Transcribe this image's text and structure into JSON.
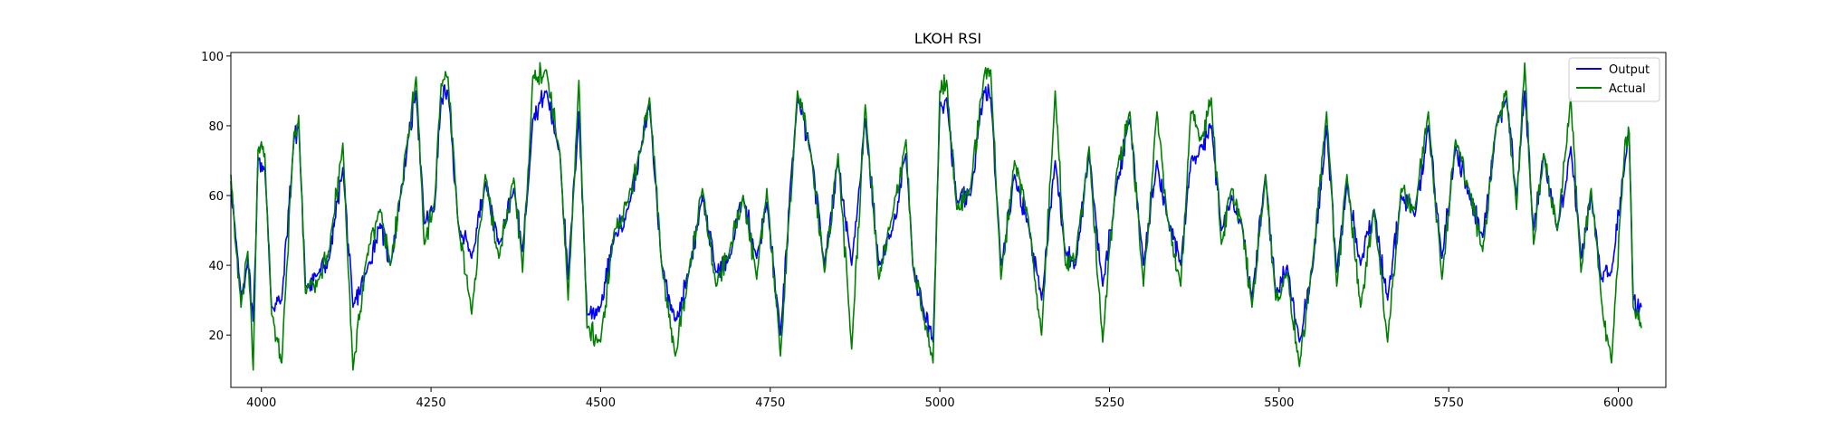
{
  "chart_data": {
    "type": "line",
    "title": "LKOH RSI",
    "xlabel": "",
    "ylabel": "",
    "xlim": [
      3955,
      6070
    ],
    "ylim": [
      5,
      101
    ],
    "x_ticks": [
      4000,
      4250,
      4500,
      4750,
      5000,
      5250,
      5500,
      5750,
      6000
    ],
    "y_ticks": [
      20,
      40,
      60,
      80,
      100
    ],
    "grid": false,
    "legend_position": "top-right",
    "x_range_of_data": [
      3955,
      6034
    ],
    "series": [
      {
        "name": "Output",
        "color": "#0000ff",
        "key_points": [
          [
            3955,
            64
          ],
          [
            3962,
            48
          ],
          [
            3970,
            30
          ],
          [
            3980,
            42
          ],
          [
            3988,
            24
          ],
          [
            3995,
            70
          ],
          [
            4005,
            68
          ],
          [
            4015,
            28
          ],
          [
            4030,
            30
          ],
          [
            4048,
            76
          ],
          [
            4055,
            80
          ],
          [
            4065,
            34
          ],
          [
            4085,
            38
          ],
          [
            4100,
            42
          ],
          [
            4120,
            68
          ],
          [
            4135,
            28
          ],
          [
            4155,
            38
          ],
          [
            4175,
            52
          ],
          [
            4190,
            40
          ],
          [
            4205,
            60
          ],
          [
            4215,
            74
          ],
          [
            4228,
            90
          ],
          [
            4240,
            52
          ],
          [
            4255,
            56
          ],
          [
            4265,
            88
          ],
          [
            4275,
            90
          ],
          [
            4290,
            52
          ],
          [
            4310,
            42
          ],
          [
            4330,
            64
          ],
          [
            4350,
            46
          ],
          [
            4372,
            62
          ],
          [
            4385,
            44
          ],
          [
            4400,
            82
          ],
          [
            4420,
            90
          ],
          [
            4440,
            72
          ],
          [
            4452,
            36
          ],
          [
            4468,
            84
          ],
          [
            4480,
            26
          ],
          [
            4500,
            28
          ],
          [
            4520,
            48
          ],
          [
            4540,
            56
          ],
          [
            4560,
            74
          ],
          [
            4572,
            86
          ],
          [
            4590,
            40
          ],
          [
            4610,
            24
          ],
          [
            4630,
            38
          ],
          [
            4650,
            60
          ],
          [
            4670,
            38
          ],
          [
            4690,
            42
          ],
          [
            4710,
            60
          ],
          [
            4730,
            42
          ],
          [
            4745,
            58
          ],
          [
            4765,
            20
          ],
          [
            4790,
            88
          ],
          [
            4810,
            72
          ],
          [
            4830,
            40
          ],
          [
            4850,
            70
          ],
          [
            4870,
            40
          ],
          [
            4890,
            82
          ],
          [
            4910,
            40
          ],
          [
            4930,
            50
          ],
          [
            4950,
            72
          ],
          [
            4960,
            40
          ],
          [
            4975,
            28
          ],
          [
            4990,
            18
          ],
          [
            5000,
            86
          ],
          [
            5010,
            88
          ],
          [
            5025,
            58
          ],
          [
            5045,
            60
          ],
          [
            5065,
            90
          ],
          [
            5075,
            88
          ],
          [
            5090,
            40
          ],
          [
            5110,
            66
          ],
          [
            5130,
            52
          ],
          [
            5150,
            30
          ],
          [
            5170,
            70
          ],
          [
            5185,
            44
          ],
          [
            5200,
            40
          ],
          [
            5220,
            72
          ],
          [
            5240,
            34
          ],
          [
            5260,
            62
          ],
          [
            5280,
            82
          ],
          [
            5300,
            40
          ],
          [
            5320,
            70
          ],
          [
            5335,
            54
          ],
          [
            5355,
            40
          ],
          [
            5370,
            70
          ],
          [
            5385,
            74
          ],
          [
            5400,
            80
          ],
          [
            5415,
            50
          ],
          [
            5430,
            60
          ],
          [
            5445,
            52
          ],
          [
            5460,
            30
          ],
          [
            5480,
            66
          ],
          [
            5495,
            32
          ],
          [
            5512,
            40
          ],
          [
            5530,
            18
          ],
          [
            5550,
            40
          ],
          [
            5570,
            80
          ],
          [
            5585,
            38
          ],
          [
            5600,
            64
          ],
          [
            5620,
            40
          ],
          [
            5640,
            56
          ],
          [
            5660,
            30
          ],
          [
            5680,
            60
          ],
          [
            5700,
            54
          ],
          [
            5720,
            80
          ],
          [
            5740,
            42
          ],
          [
            5760,
            74
          ],
          [
            5780,
            60
          ],
          [
            5800,
            48
          ],
          [
            5820,
            80
          ],
          [
            5835,
            88
          ],
          [
            5850,
            60
          ],
          [
            5862,
            90
          ],
          [
            5875,
            50
          ],
          [
            5890,
            72
          ],
          [
            5910,
            50
          ],
          [
            5930,
            74
          ],
          [
            5945,
            42
          ],
          [
            5960,
            60
          ],
          [
            5975,
            36
          ],
          [
            5990,
            38
          ],
          [
            6010,
            70
          ],
          [
            6016,
            78
          ],
          [
            6022,
            30
          ],
          [
            6034,
            28
          ]
        ]
      },
      {
        "name": "Actual",
        "color": "#008000",
        "key_points": [
          [
            3955,
            66
          ],
          [
            3962,
            46
          ],
          [
            3970,
            28
          ],
          [
            3980,
            44
          ],
          [
            3988,
            10
          ],
          [
            3995,
            73
          ],
          [
            4005,
            72
          ],
          [
            4015,
            26
          ],
          [
            4030,
            12
          ],
          [
            4048,
            78
          ],
          [
            4055,
            83
          ],
          [
            4065,
            32
          ],
          [
            4085,
            36
          ],
          [
            4100,
            44
          ],
          [
            4120,
            75
          ],
          [
            4135,
            10
          ],
          [
            4155,
            42
          ],
          [
            4175,
            56
          ],
          [
            4190,
            40
          ],
          [
            4205,
            60
          ],
          [
            4215,
            75
          ],
          [
            4228,
            94
          ],
          [
            4240,
            46
          ],
          [
            4255,
            58
          ],
          [
            4265,
            92
          ],
          [
            4275,
            94
          ],
          [
            4290,
            52
          ],
          [
            4310,
            26
          ],
          [
            4330,
            66
          ],
          [
            4350,
            42
          ],
          [
            4372,
            65
          ],
          [
            4385,
            38
          ],
          [
            4400,
            94
          ],
          [
            4420,
            96
          ],
          [
            4440,
            72
          ],
          [
            4452,
            30
          ],
          [
            4468,
            93
          ],
          [
            4480,
            22
          ],
          [
            4500,
            18
          ],
          [
            4520,
            50
          ],
          [
            4540,
            58
          ],
          [
            4560,
            74
          ],
          [
            4572,
            88
          ],
          [
            4590,
            40
          ],
          [
            4610,
            14
          ],
          [
            4630,
            38
          ],
          [
            4650,
            62
          ],
          [
            4670,
            34
          ],
          [
            4690,
            44
          ],
          [
            4710,
            60
          ],
          [
            4730,
            36
          ],
          [
            4745,
            62
          ],
          [
            4765,
            14
          ],
          [
            4790,
            90
          ],
          [
            4810,
            72
          ],
          [
            4830,
            38
          ],
          [
            4850,
            72
          ],
          [
            4870,
            16
          ],
          [
            4890,
            86
          ],
          [
            4910,
            36
          ],
          [
            4930,
            54
          ],
          [
            4950,
            76
          ],
          [
            4960,
            40
          ],
          [
            4975,
            26
          ],
          [
            4990,
            12
          ],
          [
            5000,
            90
          ],
          [
            5010,
            93
          ],
          [
            5025,
            56
          ],
          [
            5045,
            62
          ],
          [
            5065,
            94
          ],
          [
            5075,
            96
          ],
          [
            5090,
            36
          ],
          [
            5110,
            70
          ],
          [
            5130,
            54
          ],
          [
            5150,
            20
          ],
          [
            5170,
            90
          ],
          [
            5185,
            40
          ],
          [
            5200,
            42
          ],
          [
            5220,
            74
          ],
          [
            5240,
            18
          ],
          [
            5260,
            66
          ],
          [
            5280,
            84
          ],
          [
            5300,
            34
          ],
          [
            5320,
            84
          ],
          [
            5335,
            54
          ],
          [
            5355,
            34
          ],
          [
            5370,
            84
          ],
          [
            5385,
            76
          ],
          [
            5400,
            88
          ],
          [
            5415,
            46
          ],
          [
            5430,
            62
          ],
          [
            5445,
            52
          ],
          [
            5460,
            28
          ],
          [
            5480,
            66
          ],
          [
            5495,
            30
          ],
          [
            5512,
            38
          ],
          [
            5530,
            11
          ],
          [
            5550,
            42
          ],
          [
            5570,
            84
          ],
          [
            5585,
            34
          ],
          [
            5600,
            66
          ],
          [
            5620,
            28
          ],
          [
            5640,
            56
          ],
          [
            5660,
            18
          ],
          [
            5680,
            62
          ],
          [
            5700,
            56
          ],
          [
            5720,
            84
          ],
          [
            5740,
            36
          ],
          [
            5760,
            76
          ],
          [
            5780,
            62
          ],
          [
            5800,
            44
          ],
          [
            5820,
            80
          ],
          [
            5835,
            90
          ],
          [
            5850,
            56
          ],
          [
            5862,
            98
          ],
          [
            5875,
            46
          ],
          [
            5890,
            72
          ],
          [
            5910,
            50
          ],
          [
            5930,
            88
          ],
          [
            5945,
            38
          ],
          [
            5960,
            62
          ],
          [
            5975,
            30
          ],
          [
            5990,
            12
          ],
          [
            6010,
            76
          ],
          [
            6016,
            78
          ],
          [
            6022,
            28
          ],
          [
            6034,
            22
          ]
        ]
      }
    ]
  }
}
